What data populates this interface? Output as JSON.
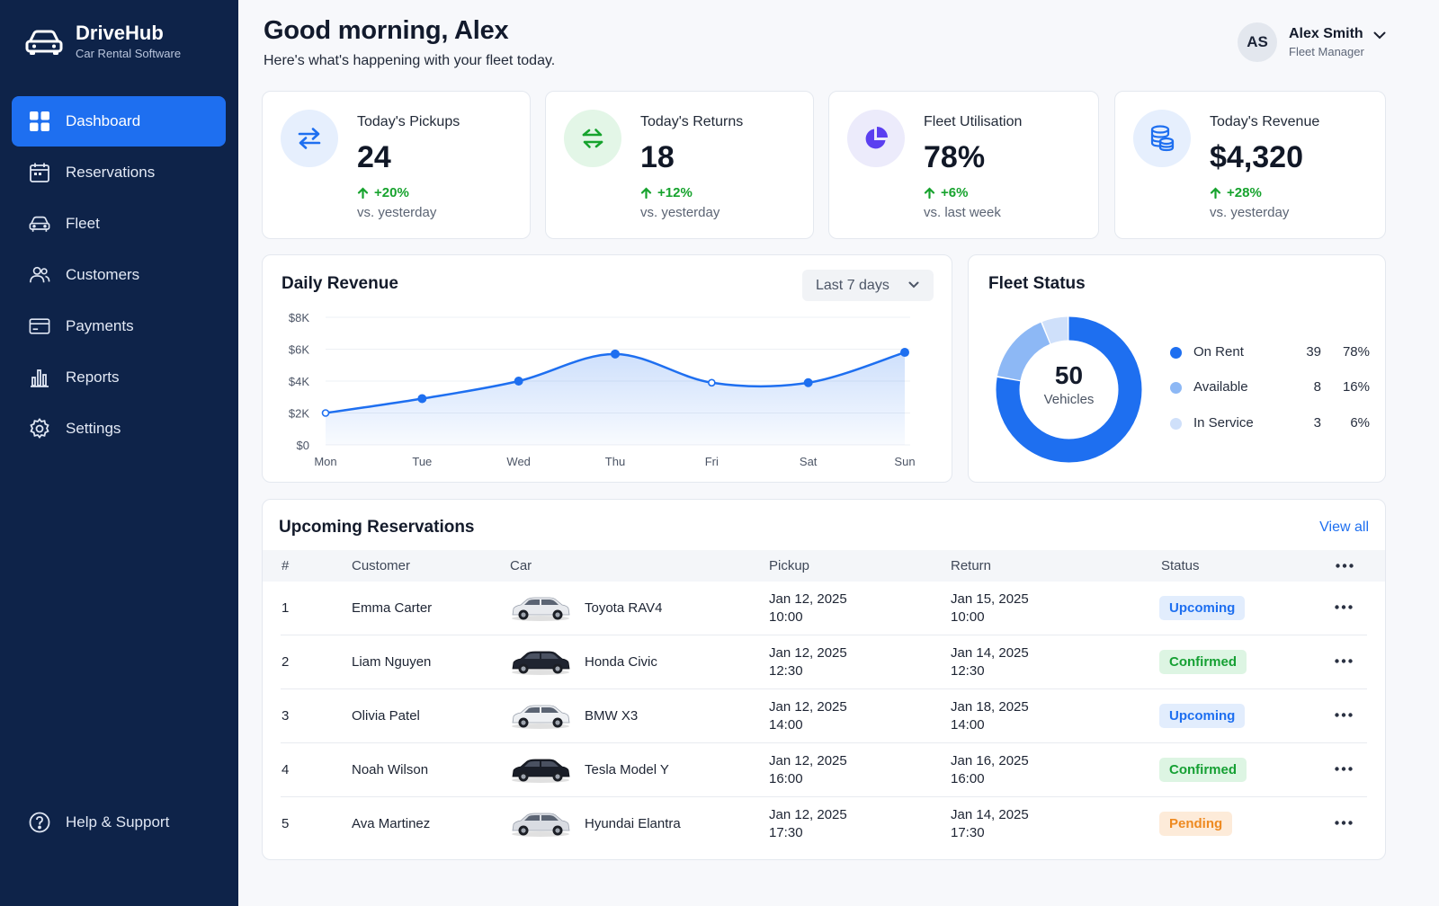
{
  "app": {
    "name": "DriveHub",
    "tagline": "Car Rental Software"
  },
  "sidebar": {
    "items": [
      {
        "label": "Dashboard",
        "icon": "grid-icon",
        "active": true
      },
      {
        "label": "Reservations",
        "icon": "calendar-icon"
      },
      {
        "label": "Fleet",
        "icon": "car-icon"
      },
      {
        "label": "Customers",
        "icon": "users-icon"
      },
      {
        "label": "Payments",
        "icon": "card-icon"
      },
      {
        "label": "Reports",
        "icon": "bar-chart-icon"
      },
      {
        "label": "Settings",
        "icon": "gear-icon"
      }
    ],
    "help": {
      "label": "Help & Support",
      "icon": "help-circle-icon"
    }
  },
  "header": {
    "greeting": "Good morning, Alex",
    "subtitle": "Here's what's happening with your fleet today."
  },
  "user": {
    "initials": "AS",
    "name": "Alex Smith",
    "role": "Fleet Manager"
  },
  "stats": [
    {
      "label": "Today's Pickups",
      "value": "24",
      "delta": "+20%",
      "period": "vs. yesterday",
      "icon": "swap-arrows-icon",
      "color": "#1e6ff0"
    },
    {
      "label": "Today's Returns",
      "value": "18",
      "delta": "+12%",
      "period": "vs. yesterday",
      "icon": "return-arrows-icon",
      "color": "#17a32e"
    },
    {
      "label": "Fleet Utilisation",
      "value": "78%",
      "delta": "+6%",
      "period": "vs. last week",
      "icon": "pie-icon",
      "color": "#5b3ff0"
    },
    {
      "label": "Today's Revenue",
      "value": "$4,320",
      "delta": "+28%",
      "period": "vs. yesterday",
      "icon": "coins-icon",
      "color": "#1e6ff0"
    }
  ],
  "revenue": {
    "title": "Daily Revenue",
    "range": "Last 7 days"
  },
  "chart_data": {
    "type": "area",
    "title": "Daily Revenue",
    "categories": [
      "Mon",
      "Tue",
      "Wed",
      "Thu",
      "Fri",
      "Sat",
      "Sun"
    ],
    "values": [
      2000,
      2900,
      4000,
      5700,
      3900,
      3900,
      5800
    ],
    "yticks": [
      "$0",
      "$2K",
      "$4K",
      "$6K",
      "$8K"
    ],
    "ylim": [
      0,
      8000
    ],
    "grid": true,
    "color": "#1e6ff0"
  },
  "fleet": {
    "title": "Fleet Status",
    "total": "50",
    "total_label": "Vehicles",
    "segments": [
      {
        "name": "On Rent",
        "count": "39",
        "pct": "78%",
        "value": 78,
        "color": "#1e6ff0"
      },
      {
        "name": "Available",
        "count": "8",
        "pct": "16%",
        "value": 16,
        "color": "#8db8f5"
      },
      {
        "name": "In Service",
        "count": "3",
        "pct": "6%",
        "value": 6,
        "color": "#cfe0fa"
      }
    ]
  },
  "reservations": {
    "title": "Upcoming Reservations",
    "view_all": "View all",
    "columns": [
      "#",
      "Customer",
      "Car",
      "Pickup",
      "Return",
      "Status"
    ],
    "rows": [
      {
        "num": "1",
        "customer": "Emma Carter",
        "car": "Toyota RAV4",
        "pickup_date": "Jan 12, 2025",
        "pickup_time": "10:00",
        "return_date": "Jan 15, 2025",
        "return_time": "10:00",
        "status": "Upcoming",
        "car_color": "#e8eaee"
      },
      {
        "num": "2",
        "customer": "Liam Nguyen",
        "car": "Honda Civic",
        "pickup_date": "Jan 12, 2025",
        "pickup_time": "12:30",
        "return_date": "Jan 14, 2025",
        "return_time": "12:30",
        "status": "Confirmed",
        "car_color": "#1f2430"
      },
      {
        "num": "3",
        "customer": "Olivia Patel",
        "car": "BMW X3",
        "pickup_date": "Jan 12, 2025",
        "pickup_time": "14:00",
        "return_date": "Jan 18, 2025",
        "return_time": "14:00",
        "status": "Upcoming",
        "car_color": "#eef0f3"
      },
      {
        "num": "4",
        "customer": "Noah Wilson",
        "car": "Tesla Model Y",
        "pickup_date": "Jan 12, 2025",
        "pickup_time": "16:00",
        "return_date": "Jan 16, 2025",
        "return_time": "16:00",
        "status": "Confirmed",
        "car_color": "#1a1e28"
      },
      {
        "num": "5",
        "customer": "Ava Martinez",
        "car": "Hyundai Elantra",
        "pickup_date": "Jan 12, 2025",
        "pickup_time": "17:30",
        "return_date": "Jan 14, 2025",
        "return_time": "17:30",
        "status": "Pending",
        "car_color": "#d9dce2"
      }
    ]
  }
}
